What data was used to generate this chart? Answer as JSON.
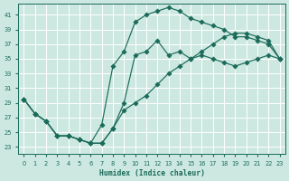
{
  "xlabel": "Humidex (Indice chaleur)",
  "xlim": [
    -0.5,
    23.5
  ],
  "ylim": [
    22,
    42.5
  ],
  "yticks": [
    23,
    25,
    27,
    29,
    31,
    33,
    35,
    37,
    39,
    41
  ],
  "xticks": [
    0,
    1,
    2,
    3,
    4,
    5,
    6,
    7,
    8,
    9,
    10,
    11,
    12,
    13,
    14,
    15,
    16,
    17,
    18,
    19,
    20,
    21,
    22,
    23
  ],
  "bg_color": "#cde8e0",
  "grid_color": "#b8d8d0",
  "line_color": "#1a6b5a",
  "line1_x": [
    0,
    1,
    2,
    3,
    4,
    5,
    6,
    7,
    8,
    9,
    10,
    11,
    12,
    13,
    14,
    15,
    16,
    17,
    18,
    19,
    20,
    21,
    22,
    23
  ],
  "line1_y": [
    29.5,
    27.5,
    26.5,
    24.5,
    24.5,
    24.0,
    23.5,
    26.0,
    34.0,
    36.0,
    40.0,
    41.0,
    41.5,
    42.0,
    41.5,
    40.5,
    40.0,
    39.5,
    39.0,
    38.0,
    38.0,
    37.5,
    37.0,
    35.0
  ],
  "line2_x": [
    0,
    1,
    2,
    3,
    4,
    5,
    6,
    7,
    8,
    9,
    10,
    11,
    12,
    13,
    14,
    15,
    16,
    17,
    18,
    19,
    20,
    21,
    22,
    23
  ],
  "line2_y": [
    29.5,
    27.5,
    26.5,
    24.5,
    24.5,
    24.0,
    23.5,
    23.5,
    25.5,
    29.0,
    35.5,
    36.0,
    37.5,
    35.5,
    36.0,
    35.0,
    35.5,
    35.0,
    34.5,
    34.0,
    34.5,
    35.0,
    35.5,
    35.0
  ],
  "line3_x": [
    0,
    1,
    2,
    3,
    4,
    5,
    6,
    7,
    8,
    9,
    10,
    11,
    12,
    13,
    14,
    15,
    16,
    17,
    18,
    19,
    20,
    21,
    22,
    23
  ],
  "line3_y": [
    29.5,
    27.5,
    26.5,
    24.5,
    24.5,
    24.0,
    23.5,
    23.5,
    25.5,
    28.0,
    29.0,
    30.0,
    31.5,
    33.0,
    34.0,
    35.0,
    36.0,
    37.0,
    38.0,
    38.5,
    38.5,
    38.0,
    37.5,
    35.0
  ]
}
